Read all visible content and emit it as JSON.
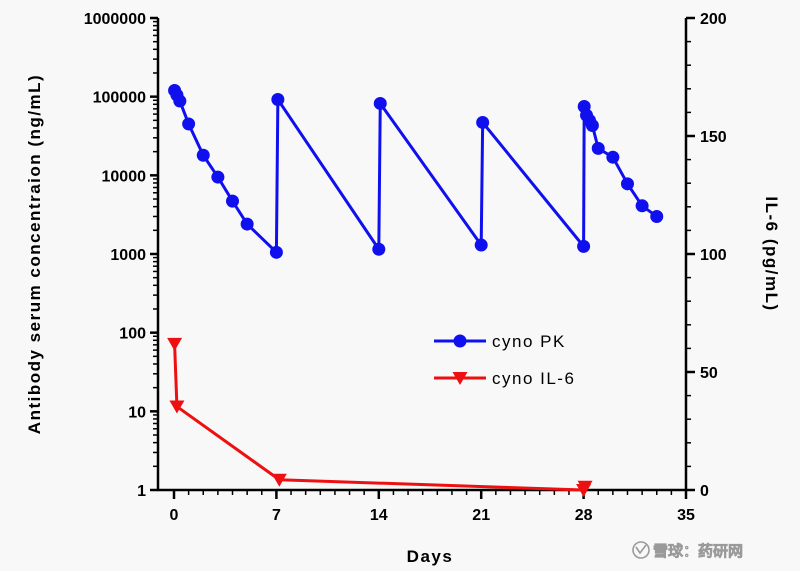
{
  "chart_data": {
    "type": "line",
    "x_label": "Days",
    "y_label_left": "Antibody serum concentraion (ng/mL)",
    "y_label_right": "IL-6 (pg/mL)",
    "x_ticks": [
      "0",
      "7",
      "14",
      "21",
      "28",
      "35"
    ],
    "x_range": [
      0,
      35
    ],
    "y_left_scale": "log",
    "y_left_range": [
      1,
      1000000
    ],
    "y_left_ticks": [
      "1",
      "10",
      "100",
      "1000",
      "10000",
      "100000",
      "1000000"
    ],
    "y_right_range": [
      0,
      200
    ],
    "y_right_ticks": [
      "0",
      "50",
      "100",
      "150",
      "200"
    ],
    "legend_position": "center-right",
    "series": [
      {
        "name": "cyno PK",
        "axis": "left",
        "color": "#1010ee",
        "marker": "circle",
        "points": [
          [
            0.04,
            120000
          ],
          [
            0.2,
            105000
          ],
          [
            0.4,
            88000
          ],
          [
            1,
            45000
          ],
          [
            2,
            18000
          ],
          [
            3,
            9500
          ],
          [
            4,
            4700
          ],
          [
            5,
            2400
          ],
          [
            7,
            1050
          ],
          [
            7.1,
            92000
          ],
          [
            14,
            1150
          ],
          [
            14.1,
            82000
          ],
          [
            21,
            1300
          ],
          [
            21.1,
            47000
          ],
          [
            28,
            1250
          ],
          [
            28.04,
            75000
          ],
          [
            28.2,
            58000
          ],
          [
            28.4,
            50000
          ],
          [
            28.6,
            43000
          ],
          [
            29,
            22000
          ],
          [
            30,
            17000
          ],
          [
            31,
            7800
          ],
          [
            32,
            4100
          ],
          [
            33,
            3000
          ]
        ]
      },
      {
        "name": "cyno IL-6",
        "axis": "left",
        "color": "#ee1010",
        "marker": "triangle-down",
        "points": [
          [
            0.04,
            72
          ],
          [
            0.2,
            11.5
          ],
          [
            7.2,
            1.35
          ],
          [
            28,
            1.0
          ],
          [
            28.1,
            1.1
          ]
        ]
      }
    ]
  },
  "watermark": "雪球：药研网"
}
